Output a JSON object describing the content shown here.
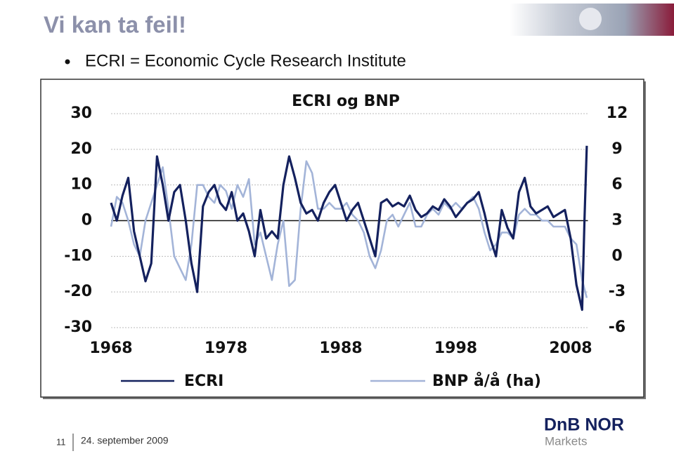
{
  "slide": {
    "title": "Vi kan ta feil!",
    "bullet": "ECRI = Economic Cycle Research Institute"
  },
  "footer": {
    "page": "11",
    "date": "24. september 2009",
    "logo": "DnB NOR",
    "logo_sub": "Markets"
  },
  "chart_data": {
    "type": "line",
    "title": "ECRI og BNP",
    "xlim": [
      1968,
      2009.5
    ],
    "xticks": [
      1968,
      1978,
      1988,
      1998,
      2008
    ],
    "ylim": [
      -30,
      30
    ],
    "yticks": [
      -30,
      -20,
      -10,
      0,
      10,
      20,
      30
    ],
    "y2lim": [
      -6,
      12
    ],
    "y2ticks": [
      -6,
      -3,
      0,
      3,
      6,
      9,
      12
    ],
    "grid": true,
    "series": [
      {
        "name": "ECRI",
        "color": "#14215e",
        "width": 3.2,
        "x": [
          1968,
          1968.5,
          1969,
          1969.5,
          1970,
          1970.5,
          1971,
          1971.5,
          1972,
          1972.5,
          1973,
          1973.5,
          1974,
          1974.5,
          1975,
          1975.5,
          1976,
          1976.5,
          1977,
          1977.5,
          1978,
          1978.5,
          1979,
          1979.5,
          1980,
          1980.5,
          1981,
          1981.5,
          1982,
          1982.5,
          1983,
          1983.5,
          1984,
          1984.5,
          1985,
          1985.5,
          1986,
          1986.5,
          1987,
          1987.5,
          1988,
          1988.5,
          1989,
          1989.5,
          1990,
          1990.5,
          1991,
          1991.5,
          1992,
          1992.5,
          1993,
          1993.5,
          1994,
          1994.5,
          1995,
          1995.5,
          1996,
          1996.5,
          1997,
          1997.5,
          1998,
          1998.5,
          1999,
          1999.5,
          2000,
          2000.5,
          2001,
          2001.5,
          2002,
          2002.5,
          2003,
          2003.5,
          2004,
          2004.5,
          2005,
          2005.5,
          2006,
          2006.5,
          2007,
          2007.5,
          2008,
          2008.5,
          2009,
          2009.2,
          2009.4
        ],
        "values": [
          5,
          0,
          7,
          12,
          -3,
          -10,
          -17,
          -12,
          18,
          10,
          0,
          8,
          10,
          0,
          -12,
          -20,
          4,
          8,
          10,
          5,
          3,
          8,
          0,
          2,
          -3,
          -10,
          3,
          -5,
          -3,
          -5,
          10,
          18,
          12,
          5,
          2,
          3,
          0,
          5,
          8,
          10,
          5,
          0,
          3,
          5,
          0,
          -5,
          -10,
          5,
          6,
          4,
          5,
          4,
          7,
          3,
          1,
          2,
          4,
          3,
          6,
          4,
          1,
          3,
          5,
          6,
          8,
          2,
          -5,
          -10,
          3,
          -2,
          -5,
          8,
          12,
          4,
          2,
          3,
          4,
          1,
          2,
          3,
          -5,
          -18,
          -25,
          0,
          21
        ]
      },
      {
        "name": "BNP å/å (ha)",
        "color": "#a3b4d8",
        "width": 2.6,
        "axis": "y2",
        "x": [
          1968,
          1968.5,
          1969,
          1969.5,
          1970,
          1970.5,
          1971,
          1971.5,
          1972,
          1972.5,
          1973,
          1973.5,
          1974,
          1974.5,
          1975,
          1975.5,
          1976,
          1976.5,
          1977,
          1977.5,
          1978,
          1978.5,
          1979,
          1979.5,
          1980,
          1980.5,
          1981,
          1981.5,
          1982,
          1982.5,
          1983,
          1983.5,
          1984,
          1984.5,
          1985,
          1985.5,
          1986,
          1986.5,
          1987,
          1987.5,
          1988,
          1988.5,
          1989,
          1989.5,
          1990,
          1990.5,
          1991,
          1991.5,
          1992,
          1992.5,
          1993,
          1993.5,
          1994,
          1994.5,
          1995,
          1995.5,
          1996,
          1996.5,
          1997,
          1997.5,
          1998,
          1998.5,
          1999,
          1999.5,
          2000,
          2000.5,
          2001,
          2001.5,
          2002,
          2002.5,
          2003,
          2003.5,
          2004,
          2004.5,
          2005,
          2005.5,
          2006,
          2006.5,
          2007,
          2007.5,
          2008,
          2008.5,
          2009,
          2009.4
        ],
        "values": [
          2.5,
          5,
          4.5,
          3,
          1,
          0,
          3,
          4.5,
          6,
          7.5,
          4,
          0,
          -1,
          -2,
          1,
          6,
          6,
          5,
          4.5,
          6,
          5.5,
          4,
          6,
          5,
          6.5,
          1,
          2,
          0,
          -2,
          1,
          3,
          -2.5,
          -2,
          4,
          8,
          7,
          4,
          4,
          4.5,
          4,
          4,
          4.5,
          3.5,
          3,
          2,
          0,
          -1,
          0.5,
          3,
          3.5,
          2.5,
          3.5,
          4.5,
          2.5,
          2.5,
          3.5,
          4,
          3.5,
          4.5,
          4,
          4.5,
          4,
          4.5,
          5,
          4,
          2,
          0.5,
          1,
          2,
          2,
          1.5,
          3.5,
          4,
          3.5,
          3.5,
          3,
          3,
          2.5,
          2.5,
          2.5,
          1.5,
          1,
          -2,
          -3.5
        ]
      }
    ]
  }
}
